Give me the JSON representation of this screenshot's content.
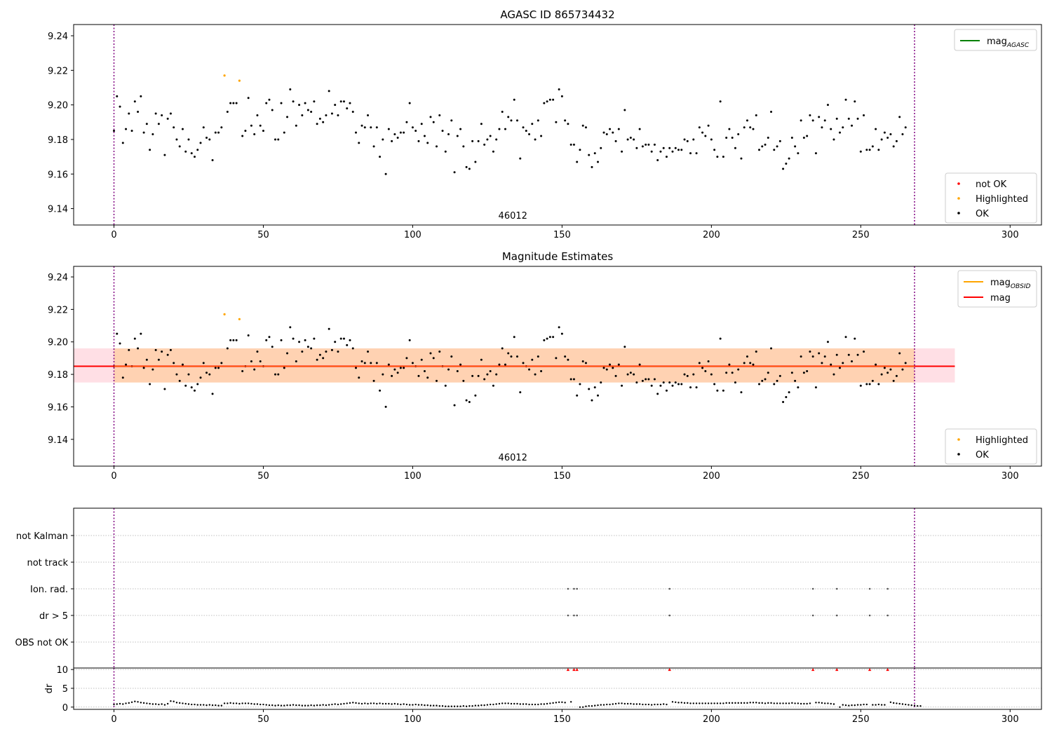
{
  "chart_data": [
    {
      "type": "scatter",
      "title": "AGASC ID 865734432",
      "xlim": [
        -13.5,
        310.5
      ],
      "ylim": [
        9.1305,
        9.2465
      ],
      "xticks": [
        0,
        50,
        100,
        150,
        200,
        250,
        300
      ],
      "yticks": [
        9.14,
        9.16,
        9.18,
        9.2,
        9.22,
        9.24
      ],
      "vlines": [
        0,
        268
      ],
      "obsid_label": {
        "text": "46012",
        "x": 134
      },
      "line_legend": [
        {
          "label": "mag",
          "sub": "AGASC",
          "color": "#008000"
        }
      ],
      "marker_legend": [
        {
          "label": "not OK",
          "color": "#ff0000"
        },
        {
          "label": "Highlighted",
          "color": "#ffa500"
        },
        {
          "label": "OK",
          "color": "#000000"
        }
      ],
      "highlighted": [
        [
          37,
          9.217
        ],
        [
          42,
          9.214
        ]
      ]
    },
    {
      "type": "scatter",
      "title": "Magnitude Estimates",
      "xlim": [
        -13.5,
        310.5
      ],
      "ylim": [
        9.1235,
        9.2465
      ],
      "xticks": [
        0,
        50,
        100,
        150,
        200,
        250,
        300
      ],
      "yticks": [
        9.14,
        9.16,
        9.18,
        9.2,
        9.22,
        9.24
      ],
      "vlines": [
        0,
        268
      ],
      "obsid_label": {
        "text": "46012",
        "x": 134
      },
      "mean_mag": 9.185,
      "band": [
        9.175,
        9.196
      ],
      "band_x": [
        -13.5,
        281.5
      ],
      "line_legend": [
        {
          "label": "mag",
          "sub": "OBSID",
          "color": "#ffa500"
        },
        {
          "label": "mag",
          "sub": "",
          "color": "#ff0000"
        }
      ],
      "marker_legend": [
        {
          "label": "Highlighted",
          "color": "#ffa500"
        },
        {
          "label": "OK",
          "color": "#000000"
        }
      ],
      "highlighted": [
        [
          37,
          9.217
        ],
        [
          42,
          9.214
        ]
      ]
    },
    {
      "type": "scatter",
      "xlim": [
        -13.5,
        310.5
      ],
      "categories": [
        "not Kalman",
        "not track",
        "Ion. rad.",
        "dr > 5",
        "OBS not OK"
      ],
      "flag_points": {
        "Ion. rad.": [
          152,
          154,
          155,
          186,
          234,
          242,
          253,
          259
        ],
        "dr > 5": [
          152,
          154,
          155,
          186,
          234,
          242,
          253,
          259
        ]
      },
      "vlines": [
        0,
        268
      ]
    },
    {
      "type": "scatter",
      "ylabel": "dr",
      "xlim": [
        -13.5,
        310.5
      ],
      "ylim": [
        -0.6,
        10.4
      ],
      "xticks": [
        0,
        50,
        100,
        150,
        200,
        250,
        300
      ],
      "yticks": [
        0,
        5,
        10
      ],
      "clipped_points": [
        152,
        154,
        155,
        186,
        234,
        242,
        253,
        259
      ],
      "vlines": [
        0,
        268
      ]
    }
  ],
  "series": {
    "mag": [
      9.185,
      9.205,
      9.199,
      9.178,
      9.186,
      9.195,
      9.185,
      9.202,
      9.196,
      9.205,
      9.184,
      9.189,
      9.174,
      9.183,
      9.195,
      9.189,
      9.194,
      9.171,
      9.192,
      9.195,
      9.187,
      9.18,
      9.176,
      9.186,
      9.173,
      9.18,
      9.172,
      9.17,
      9.174,
      9.178,
      9.187,
      9.181,
      9.18,
      9.168,
      9.184,
      9.184,
      9.187,
      9.217,
      9.196,
      9.201,
      9.201,
      9.201,
      9.214,
      9.182,
      9.185,
      9.204,
      9.188,
      9.183,
      9.194,
      9.188,
      9.185,
      9.201,
      9.203,
      9.197,
      9.18,
      9.18,
      9.201,
      9.184,
      9.193,
      9.209,
      9.202,
      9.188,
      9.2,
      9.194,
      9.201,
      9.197,
      9.196,
      9.202,
      9.189,
      9.192,
      9.19,
      9.194,
      9.208,
      9.195,
      9.2,
      9.194,
      9.202,
      9.202,
      9.198,
      9.201,
      9.196,
      9.184,
      9.178,
      9.188,
      9.187,
      9.194,
      9.187,
      9.176,
      9.187,
      9.17,
      9.18,
      9.16,
      9.186,
      9.179,
      9.183,
      9.181,
      9.184,
      9.184,
      9.19,
      9.201,
      9.187,
      9.185,
      9.179,
      9.189,
      9.182,
      9.178,
      9.193,
      9.19,
      9.176,
      9.194,
      9.185,
      9.173,
      9.183,
      9.191,
      9.161,
      9.182,
      9.186,
      9.176,
      9.164,
      9.163,
      9.179,
      9.167,
      9.179,
      9.189,
      9.177,
      9.18,
      9.182,
      9.173,
      9.18,
      9.186,
      9.196,
      9.186,
      9.193,
      9.191,
      9.203,
      9.191,
      9.169,
      9.187,
      9.185,
      9.183,
      9.189,
      9.18,
      9.191,
      9.182,
      9.201,
      9.202,
      9.203,
      9.203,
      9.19,
      9.209,
      9.205,
      9.191,
      9.189,
      9.177,
      9.177,
      9.167,
      9.174,
      9.188,
      9.187,
      9.171,
      9.164,
      9.172,
      9.167,
      9.175,
      9.184,
      9.183,
      9.186,
      9.184,
      9.179,
      9.186,
      9.173,
      9.197,
      9.18,
      9.181,
      9.18,
      9.175,
      9.186,
      9.176,
      9.177,
      9.177,
      9.173,
      9.177,
      9.168,
      9.173,
      9.175,
      9.17,
      9.175,
      9.173,
      9.175,
      9.174,
      9.174,
      9.18,
      9.179,
      9.172,
      9.18,
      9.172,
      9.187,
      9.184,
      9.182,
      9.188,
      9.18,
      9.174,
      9.17,
      9.202,
      9.17,
      9.181,
      9.186,
      9.181,
      9.175,
      9.183,
      9.169,
      9.187,
      9.191,
      9.187,
      9.186,
      9.194,
      9.174,
      9.176,
      9.177,
      9.181,
      9.196,
      9.174,
      9.176,
      9.179,
      9.163,
      9.166,
      9.169,
      9.181,
      9.176,
      9.172,
      9.191,
      9.181,
      9.182,
      9.194,
      9.191,
      9.172,
      9.193,
      9.187,
      9.191,
      9.2,
      9.186,
      9.18,
      9.192,
      9.184,
      9.187,
      9.203,
      9.192,
      9.188,
      9.202,
      9.192,
      9.173,
      9.194,
      9.174,
      9.174,
      9.176,
      9.186,
      9.174,
      9.18,
      9.184,
      9.181,
      9.183,
      9.176,
      9.179,
      9.193,
      9.183,
      9.187
    ],
    "dr": [
      0.7,
      0.8,
      0.9,
      0.8,
      1.0,
      1.1,
      1.3,
      1.5,
      1.4,
      1.2,
      1.1,
      1.0,
      0.9,
      0.8,
      0.8,
      0.7,
      0.8,
      0.6,
      0.9,
      1.6,
      1.5,
      1.2,
      1.1,
      1.0,
      0.9,
      0.8,
      0.7,
      0.7,
      0.6,
      0.6,
      0.6,
      0.5,
      0.6,
      0.5,
      0.5,
      0.4,
      0.4,
      1.0,
      1.0,
      1.1,
      1.0,
      1.0,
      0.9,
      1.0,
      1.0,
      1.0,
      0.9,
      0.8,
      0.8,
      0.7,
      0.7,
      0.6,
      0.5,
      0.5,
      0.4,
      0.5,
      0.4,
      0.4,
      0.5,
      0.5,
      0.6,
      0.5,
      0.5,
      0.4,
      0.4,
      0.4,
      0.5,
      0.4,
      0.5,
      0.5,
      0.6,
      0.5,
      0.6,
      0.7,
      0.8,
      0.7,
      0.8,
      0.9,
      1.0,
      1.1,
      1.2,
      1.1,
      1.0,
      0.9,
      1.0,
      0.9,
      1.0,
      1.0,
      0.9,
      1.0,
      0.9,
      0.9,
      0.9,
      0.8,
      0.9,
      0.8,
      0.7,
      0.8,
      0.7,
      0.6,
      0.6,
      0.7,
      0.6,
      0.6,
      0.5,
      0.5,
      0.4,
      0.4,
      0.4,
      0.3,
      0.3,
      0.2,
      0.2,
      0.2,
      0.2,
      0.2,
      0.2,
      0.3,
      0.2,
      0.3,
      0.3,
      0.4,
      0.4,
      0.5,
      0.5,
      0.6,
      0.7,
      0.7,
      0.8,
      0.9,
      1.0,
      1.0,
      1.0,
      0.9,
      0.9,
      0.9,
      0.8,
      0.8,
      0.8,
      0.7,
      0.7,
      0.7,
      0.7,
      0.8,
      0.8,
      0.9,
      1.0,
      1.1,
      1.2,
      1.3,
      1.3,
      1.2,
      1.1,
      1.4,
      0.0,
      1.4,
      0.0,
      0.0,
      0.2,
      0.3,
      0.3,
      0.4,
      0.5,
      0.6,
      0.6,
      0.7,
      0.7,
      0.8,
      0.9,
      1.0,
      1.0,
      0.9,
      0.9,
      0.9,
      0.8,
      0.8,
      0.8,
      0.7,
      0.7,
      0.7,
      0.6,
      0.7,
      0.7,
      0.7,
      0.8,
      0.7,
      0.8,
      1.4,
      1.3,
      1.2,
      1.2,
      1.1,
      1.1,
      1.0,
      1.0,
      1.0,
      1.0,
      1.0,
      1.0,
      1.0,
      1.0,
      1.0,
      1.0,
      1.0,
      1.0,
      1.1,
      1.1,
      1.1,
      1.1,
      1.1,
      1.1,
      1.1,
      1.1,
      1.2,
      1.2,
      1.2,
      1.1,
      1.1,
      1.0,
      1.1,
      1.1,
      1.0,
      1.0,
      1.0,
      1.0,
      1.0,
      1.0,
      1.1,
      1.0,
      1.0,
      0.9,
      0.9,
      0.9,
      1.0,
      0.0,
      1.2,
      1.2,
      1.1,
      1.0,
      1.0,
      0.9,
      0.8,
      0.7,
      0.0,
      0.6,
      0.5,
      0.4,
      0.5,
      0.5,
      0.6,
      0.6,
      0.7,
      0.7,
      0.0,
      0.6,
      0.6,
      0.7,
      0.6,
      0.6,
      0.0,
      1.3,
      1.1,
      1.0,
      0.9,
      0.8,
      0.7,
      0.6,
      0.5,
      0.4,
      0.3,
      0.3
    ]
  }
}
